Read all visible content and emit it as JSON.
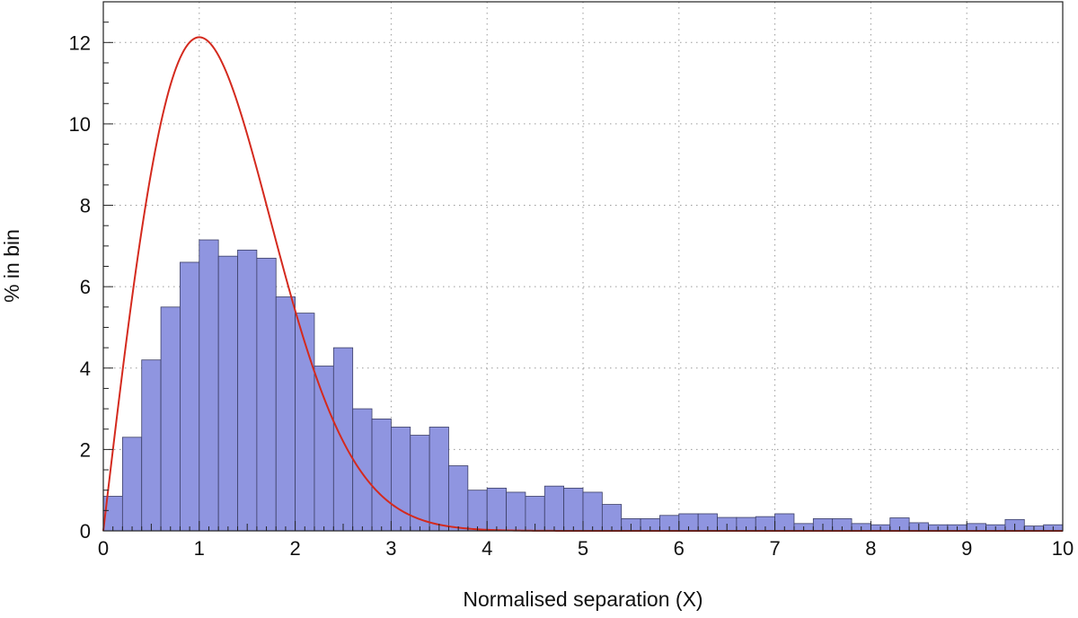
{
  "chart_data": {
    "type": "bar",
    "title": "",
    "xlabel": "Normalised separation (X)",
    "ylabel": "% in bin",
    "xlim": [
      0,
      10
    ],
    "ylim": [
      0,
      13
    ],
    "xticks": [
      0,
      1,
      2,
      3,
      4,
      5,
      6,
      7,
      8,
      9,
      10
    ],
    "xtick_labels": [
      "0",
      "1",
      "2",
      "3",
      "4",
      "5",
      "6",
      "7",
      "8",
      "9",
      "10"
    ],
    "yticks": [
      0,
      2,
      4,
      6,
      8,
      10,
      12
    ],
    "ytick_labels": [
      "0",
      "2",
      "4",
      "6",
      "8",
      "10",
      "12"
    ],
    "grid": true,
    "grid_style": "dotted",
    "bin_width": 0.2,
    "bin_start": 0,
    "values": [
      0.85,
      2.3,
      4.2,
      5.5,
      6.6,
      7.15,
      6.75,
      6.9,
      6.7,
      5.75,
      5.35,
      4.05,
      4.5,
      3.0,
      2.75,
      2.55,
      2.35,
      2.55,
      1.6,
      1.0,
      1.05,
      0.95,
      0.85,
      1.1,
      1.05,
      0.95,
      0.65,
      0.3,
      0.3,
      0.38,
      0.42,
      0.42,
      0.33,
      0.33,
      0.35,
      0.42,
      0.18,
      0.3,
      0.3,
      0.18,
      0.15,
      0.32,
      0.2,
      0.15,
      0.15,
      0.18,
      0.15,
      0.28,
      0.12,
      0.15
    ],
    "curve": {
      "type": "line",
      "peak_x": 1.0,
      "peak_y": 12.13,
      "shape": "x*exp(-x^2/2)"
    },
    "colors": {
      "bar_fill": "#8f95e0",
      "bar_stroke": "#3c3f66",
      "curve": "#d42a1e",
      "axis": "#222222",
      "grid": "#9a9a9a"
    }
  }
}
